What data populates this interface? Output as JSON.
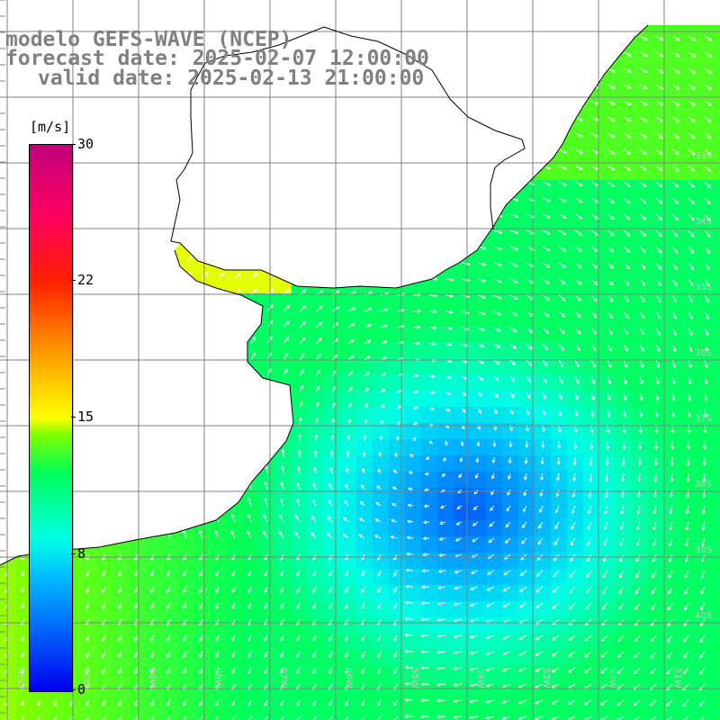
{
  "title": {
    "line1": "modelo GEFS-WAVE (NCEP)",
    "line2": "forecast date: 2025-02-07 12:00:00",
    "line3": "valid date: 2025-02-13 21:00:00"
  },
  "colorbar": {
    "unit": "[m/s]",
    "min": 0,
    "max": 30,
    "labels": [
      "30",
      "22",
      "15",
      "8",
      "0"
    ]
  },
  "axes": {
    "lon_labels": [
      "61W",
      "60W",
      "59W",
      "58W",
      "57W",
      "56W",
      "55W",
      "54W",
      "53W",
      "52W",
      "51W"
    ],
    "lat_labels": [
      "33S",
      "34S",
      "35S",
      "36S",
      "37S",
      "38S",
      "39S",
      "40S"
    ]
  },
  "colors": {
    "background": "#ffffff",
    "coastline": "#000000",
    "grid": "#808080",
    "arrows": "#ffffff",
    "title": "#808080",
    "land": "#ffffff"
  }
}
